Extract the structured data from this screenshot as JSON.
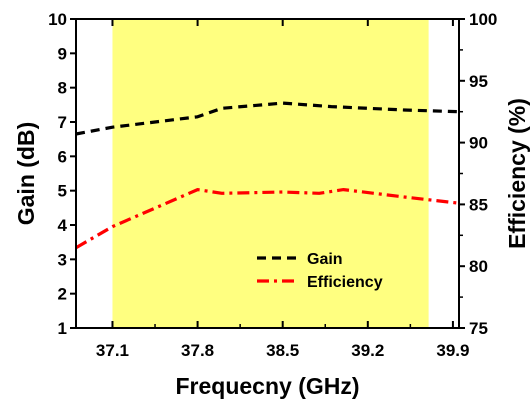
{
  "chart_data": {
    "type": "line",
    "title": "",
    "xlabel": "Frequecny (GHz)",
    "ylabel_left": "Gain (dB)",
    "ylabel_right": "Efficiency (%)",
    "xlim": [
      36.8,
      39.95
    ],
    "ylim_left": [
      1,
      10
    ],
    "ylim_right": [
      75,
      100
    ],
    "x_ticks": [
      "37.1",
      "37.8",
      "38.5",
      "39.2",
      "39.9"
    ],
    "y_ticks_left": [
      "1",
      "2",
      "3",
      "4",
      "5",
      "6",
      "7",
      "8",
      "9",
      "10"
    ],
    "y_ticks_right": [
      "75",
      "80",
      "85",
      "90",
      "95",
      "100"
    ],
    "highlight_band": {
      "x_range": [
        37.1,
        39.7
      ],
      "color": "#ffff80"
    },
    "grid": false,
    "legend_position": "lower-right",
    "series": [
      {
        "name": "Gain",
        "axis": "left",
        "color": "#000000",
        "style": "dashed",
        "x": [
          36.8,
          37.1,
          37.8,
          38.0,
          38.5,
          38.9,
          39.2,
          39.5,
          39.95
        ],
        "y": [
          6.65,
          6.85,
          7.15,
          7.4,
          7.55,
          7.45,
          7.4,
          7.35,
          7.3
        ]
      },
      {
        "name": "Efficiency",
        "axis": "right",
        "color": "#ff0000",
        "style": "dashdot",
        "x": [
          36.8,
          37.1,
          37.8,
          38.0,
          38.5,
          38.8,
          39.0,
          39.5,
          39.95
        ],
        "y": [
          81.5,
          83.2,
          86.2,
          85.9,
          86.0,
          85.9,
          86.2,
          85.6,
          85.1
        ]
      }
    ]
  }
}
